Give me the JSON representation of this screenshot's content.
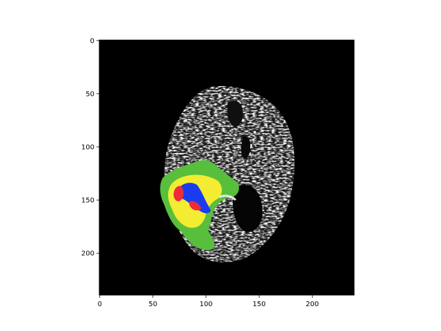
{
  "image": {
    "description_free": true,
    "colormap": {
      "background": "#000000",
      "edema": "#58bf3c",
      "enhancing": "#f4ec31",
      "core": "#1a3cf0",
      "necrosis": "#ee2b3b"
    }
  },
  "axes": {
    "x_ticks": [
      {
        "value": 0,
        "label": "0"
      },
      {
        "value": 50,
        "label": "50"
      },
      {
        "value": 100,
        "label": "100"
      },
      {
        "value": 150,
        "label": "150"
      },
      {
        "value": 200,
        "label": "200"
      }
    ],
    "y_ticks": [
      {
        "value": 0,
        "label": "0"
      },
      {
        "value": 50,
        "label": "50"
      },
      {
        "value": 100,
        "label": "100"
      },
      {
        "value": 150,
        "label": "150"
      },
      {
        "value": 200,
        "label": "200"
      }
    ],
    "xlim": [
      0,
      240
    ],
    "ylim": [
      240,
      0
    ]
  }
}
